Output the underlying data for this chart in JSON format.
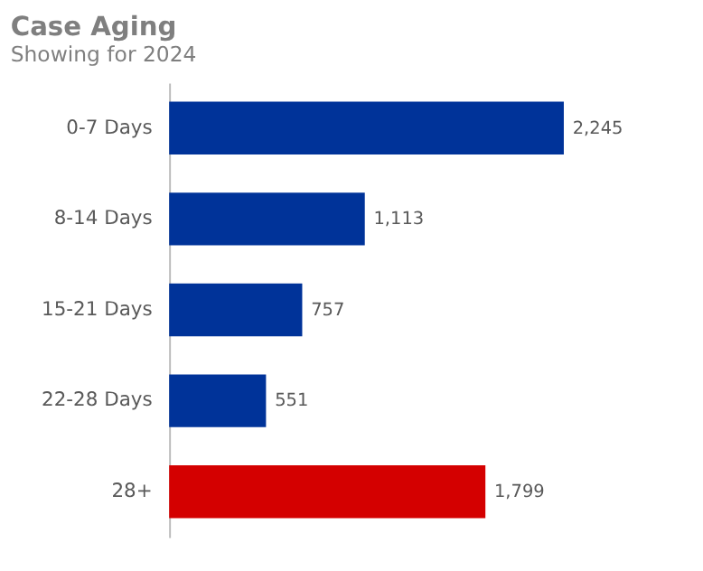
{
  "chart_data": {
    "type": "bar",
    "orientation": "horizontal",
    "title": "Case Aging",
    "subtitle": "Showing for 2024",
    "categories": [
      "0-7 Days",
      "8-14 Days",
      "15-21 Days",
      "22-28 Days",
      "28+"
    ],
    "values": [
      2245,
      1113,
      757,
      551,
      1799
    ],
    "colors": [
      "#003399",
      "#003399",
      "#003399",
      "#003399",
      "#d40000"
    ],
    "value_labels": [
      "2,245",
      "1,113",
      "757",
      "551",
      "1,799"
    ]
  }
}
